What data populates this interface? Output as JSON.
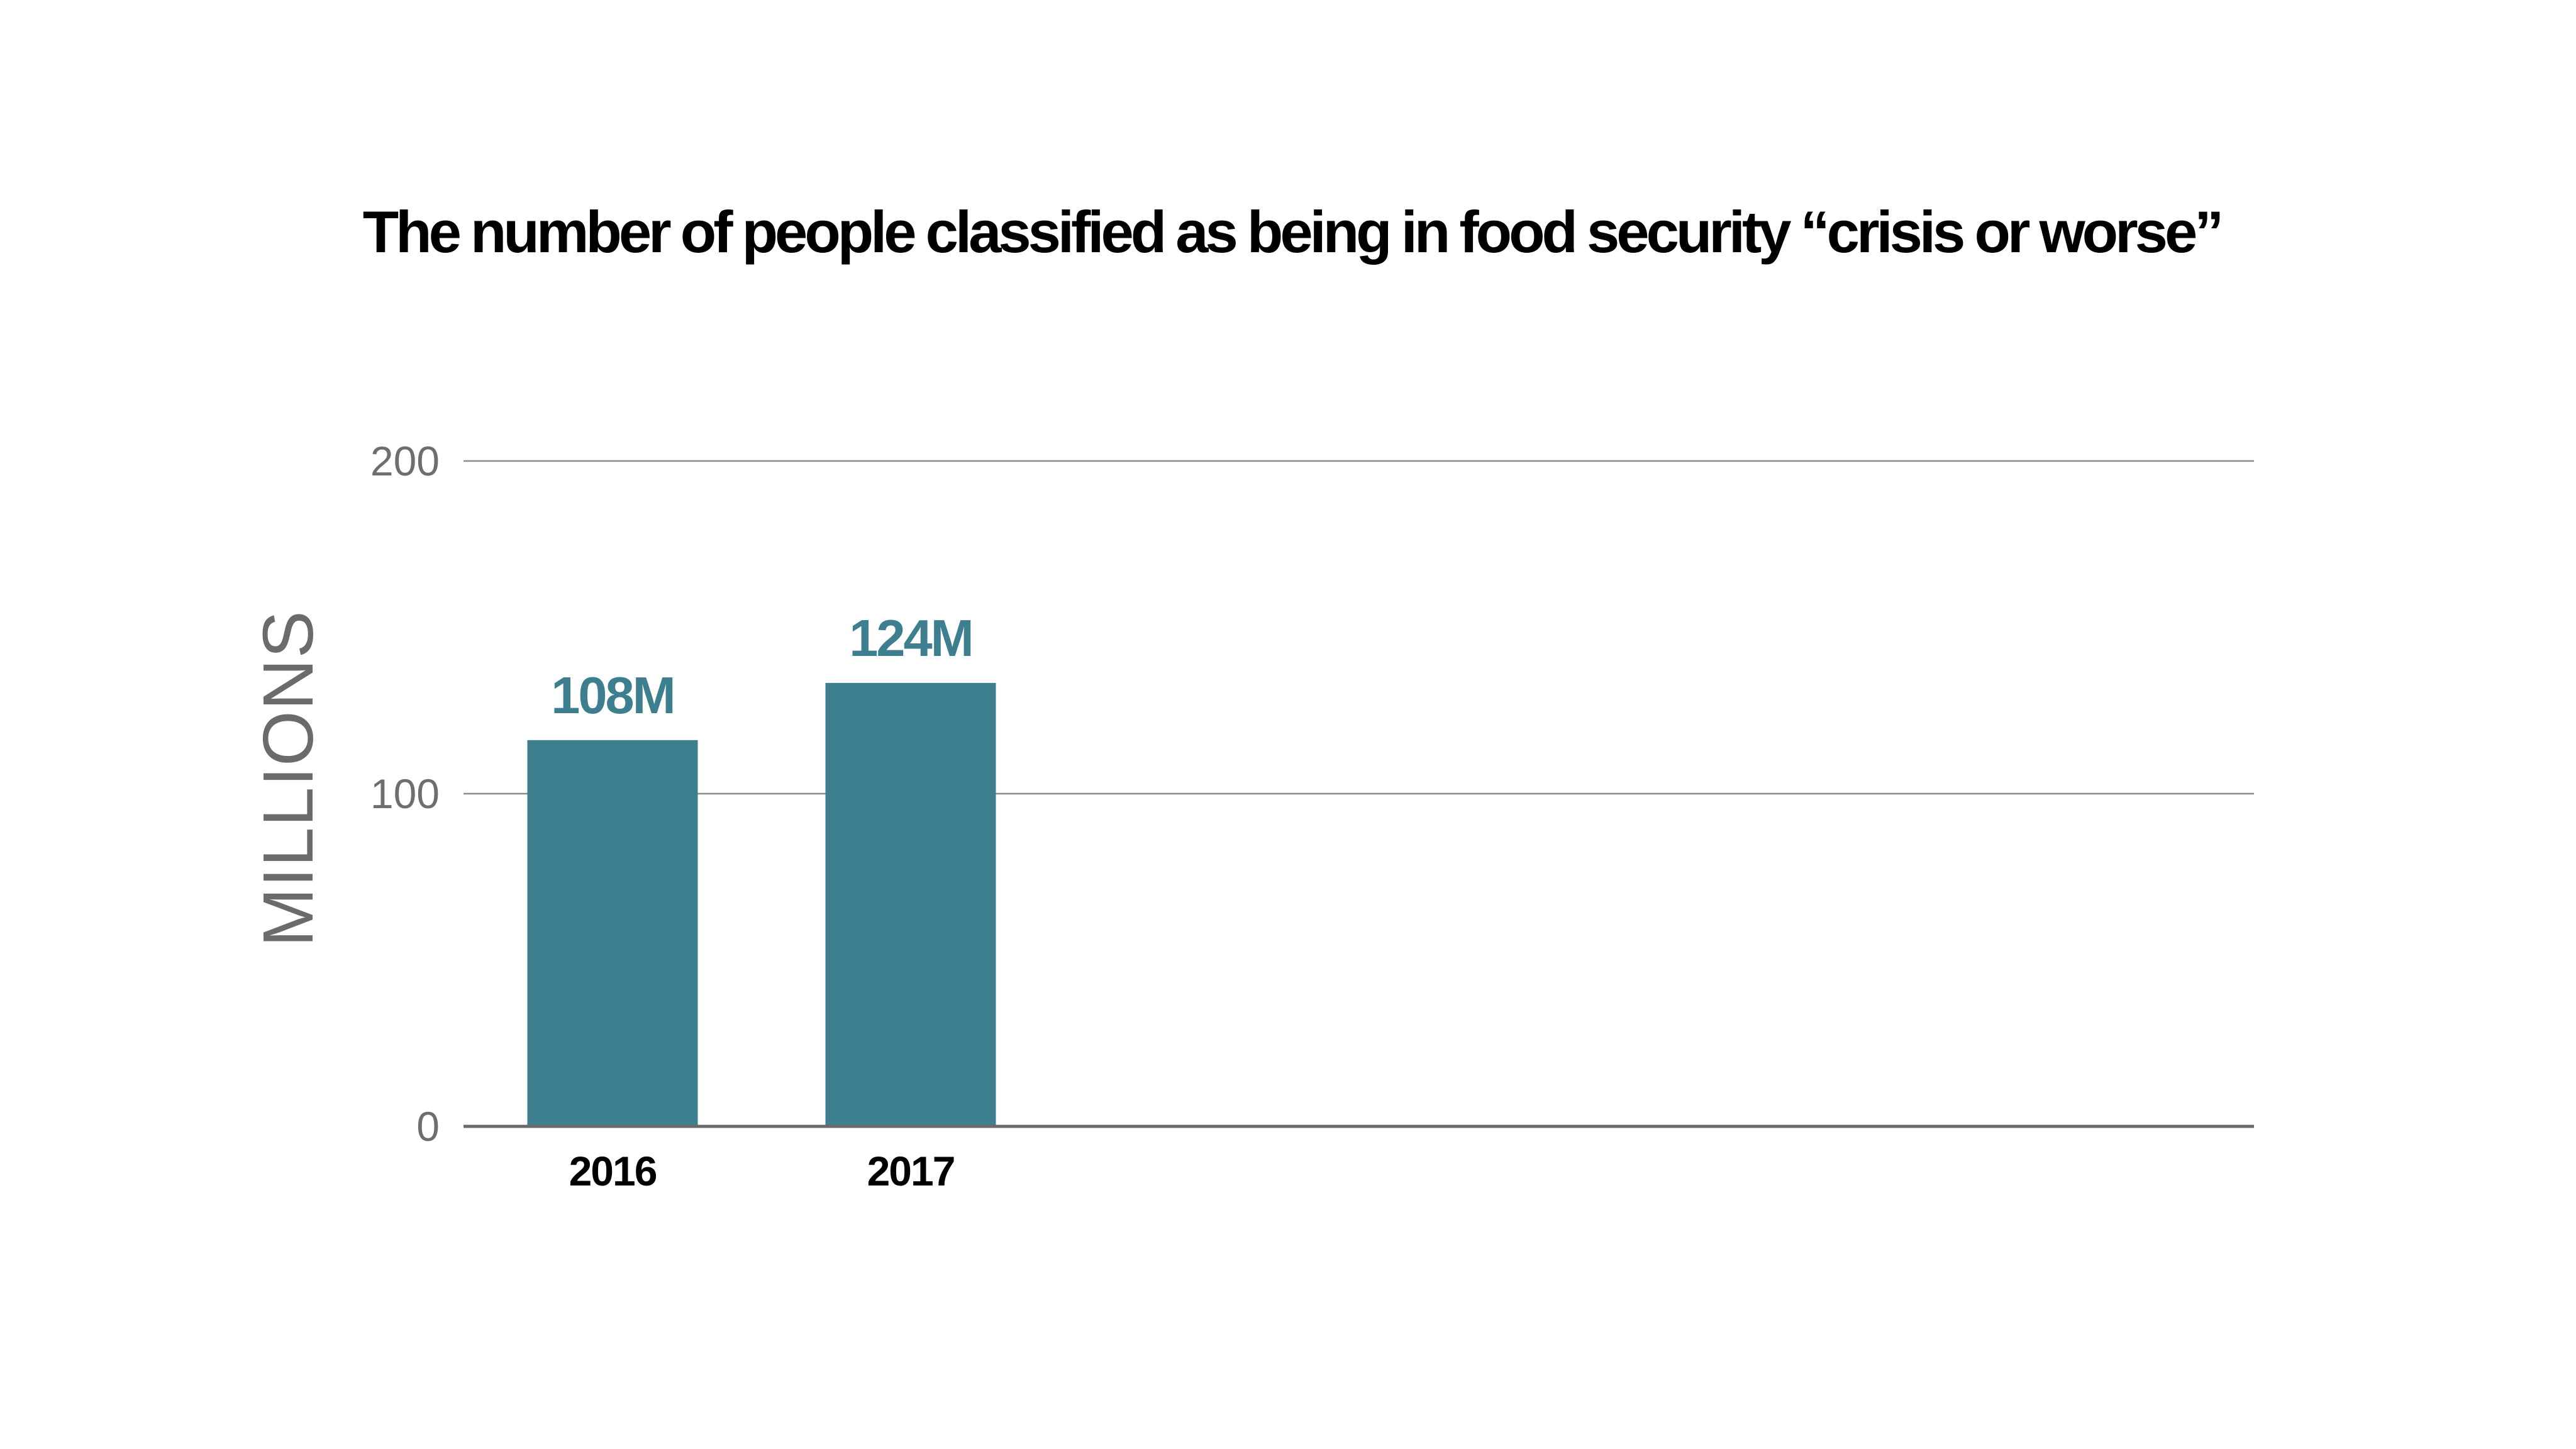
{
  "chart_data": {
    "type": "bar",
    "title": "The number of people classified as being in food security “crisis or worse”",
    "xlabel": "",
    "ylabel": "MILLIONS",
    "categories": [
      "2016",
      "2017"
    ],
    "values": [
      108,
      124
    ],
    "data_labels": [
      "108M",
      "124M"
    ],
    "units": "millions of people",
    "ylim": [
      0,
      200
    ],
    "yticks": [
      0,
      100,
      200
    ],
    "ytick_labels": [
      "0",
      "100",
      "200"
    ],
    "grid": true,
    "legend": "none",
    "bar_color": "#3d7f8f",
    "data_label_color": "#3d7f8f"
  }
}
